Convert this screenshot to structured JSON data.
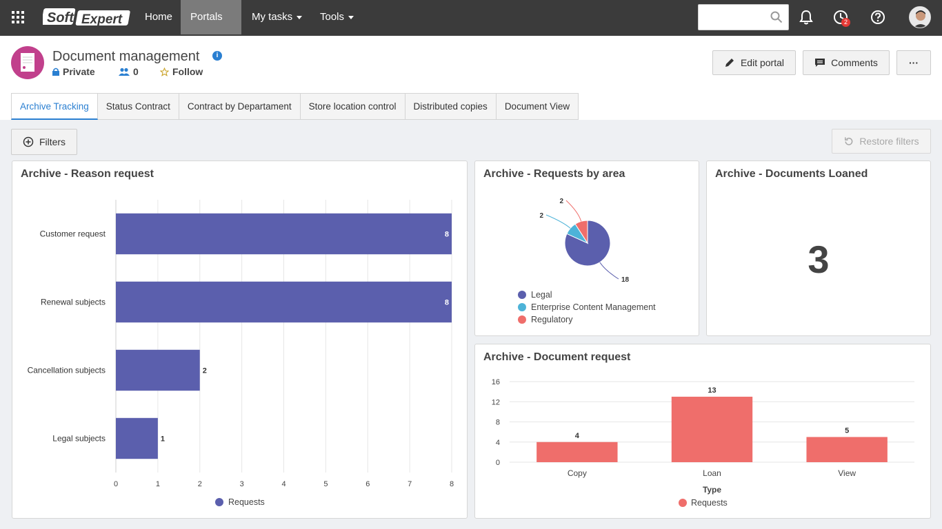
{
  "topnav": {
    "logo_text_1": "Soft",
    "logo_text_2": "Expert",
    "home": "Home",
    "portals": "Portals",
    "my_tasks": "My tasks",
    "tools": "Tools",
    "search_placeholder": "",
    "notification_count": "2"
  },
  "header": {
    "title": "Document management",
    "privacy": "Private",
    "members": "0",
    "follow": "Follow",
    "edit_portal": "Edit portal",
    "comments": "Comments",
    "more": "···"
  },
  "tabs": [
    "Archive Tracking",
    "Status Contract",
    "Contract by Departament",
    "Store location control",
    "Distributed copies",
    "Document View"
  ],
  "toolbar": {
    "filters": "Filters",
    "restore_filters": "Restore filters"
  },
  "colors": {
    "bar_purple": "#5b5fad",
    "bar_red": "#ef6e6b",
    "pie_legal": "#5b5fad",
    "pie_ecm": "#4db3d8",
    "pie_regulatory": "#ef6e6b",
    "accent": "#2a7fd1"
  },
  "widgets": {
    "reason_title": "Archive - Reason request",
    "area_title": "Archive -  Requests by area",
    "loaned_title": "Archive - Documents Loaned",
    "loaned_value": "3",
    "docreq_title": "Archive - Document request"
  },
  "chart_data": [
    {
      "type": "bar",
      "orientation": "horizontal",
      "title": "Archive - Reason request",
      "categories": [
        "Customer request",
        "Renewal subjects",
        "Cancellation subjects",
        "Legal subjects"
      ],
      "series": [
        {
          "name": "Requests",
          "values": [
            8,
            8,
            2,
            1
          ]
        }
      ],
      "xlim": [
        0,
        8
      ],
      "x_ticks": [
        "0",
        "1",
        "2",
        "3",
        "4",
        "5",
        "6",
        "7",
        "8"
      ],
      "legend": "bottom"
    },
    {
      "type": "pie",
      "title": "Archive -  Requests by area",
      "labels": [
        "Legal",
        "Enterprise Content Management",
        "Regulatory"
      ],
      "values": [
        18,
        2,
        2
      ],
      "legend": "bottom"
    },
    {
      "type": "bar",
      "title": "Archive - Document request",
      "categories": [
        "Copy",
        "Loan",
        "View"
      ],
      "series": [
        {
          "name": "Requests",
          "values": [
            4,
            13,
            5
          ]
        }
      ],
      "xlabel": "Type",
      "ylim": [
        0,
        16
      ],
      "y_ticks": [
        "0",
        "4",
        "8",
        "12",
        "16"
      ],
      "legend": "bottom"
    }
  ]
}
